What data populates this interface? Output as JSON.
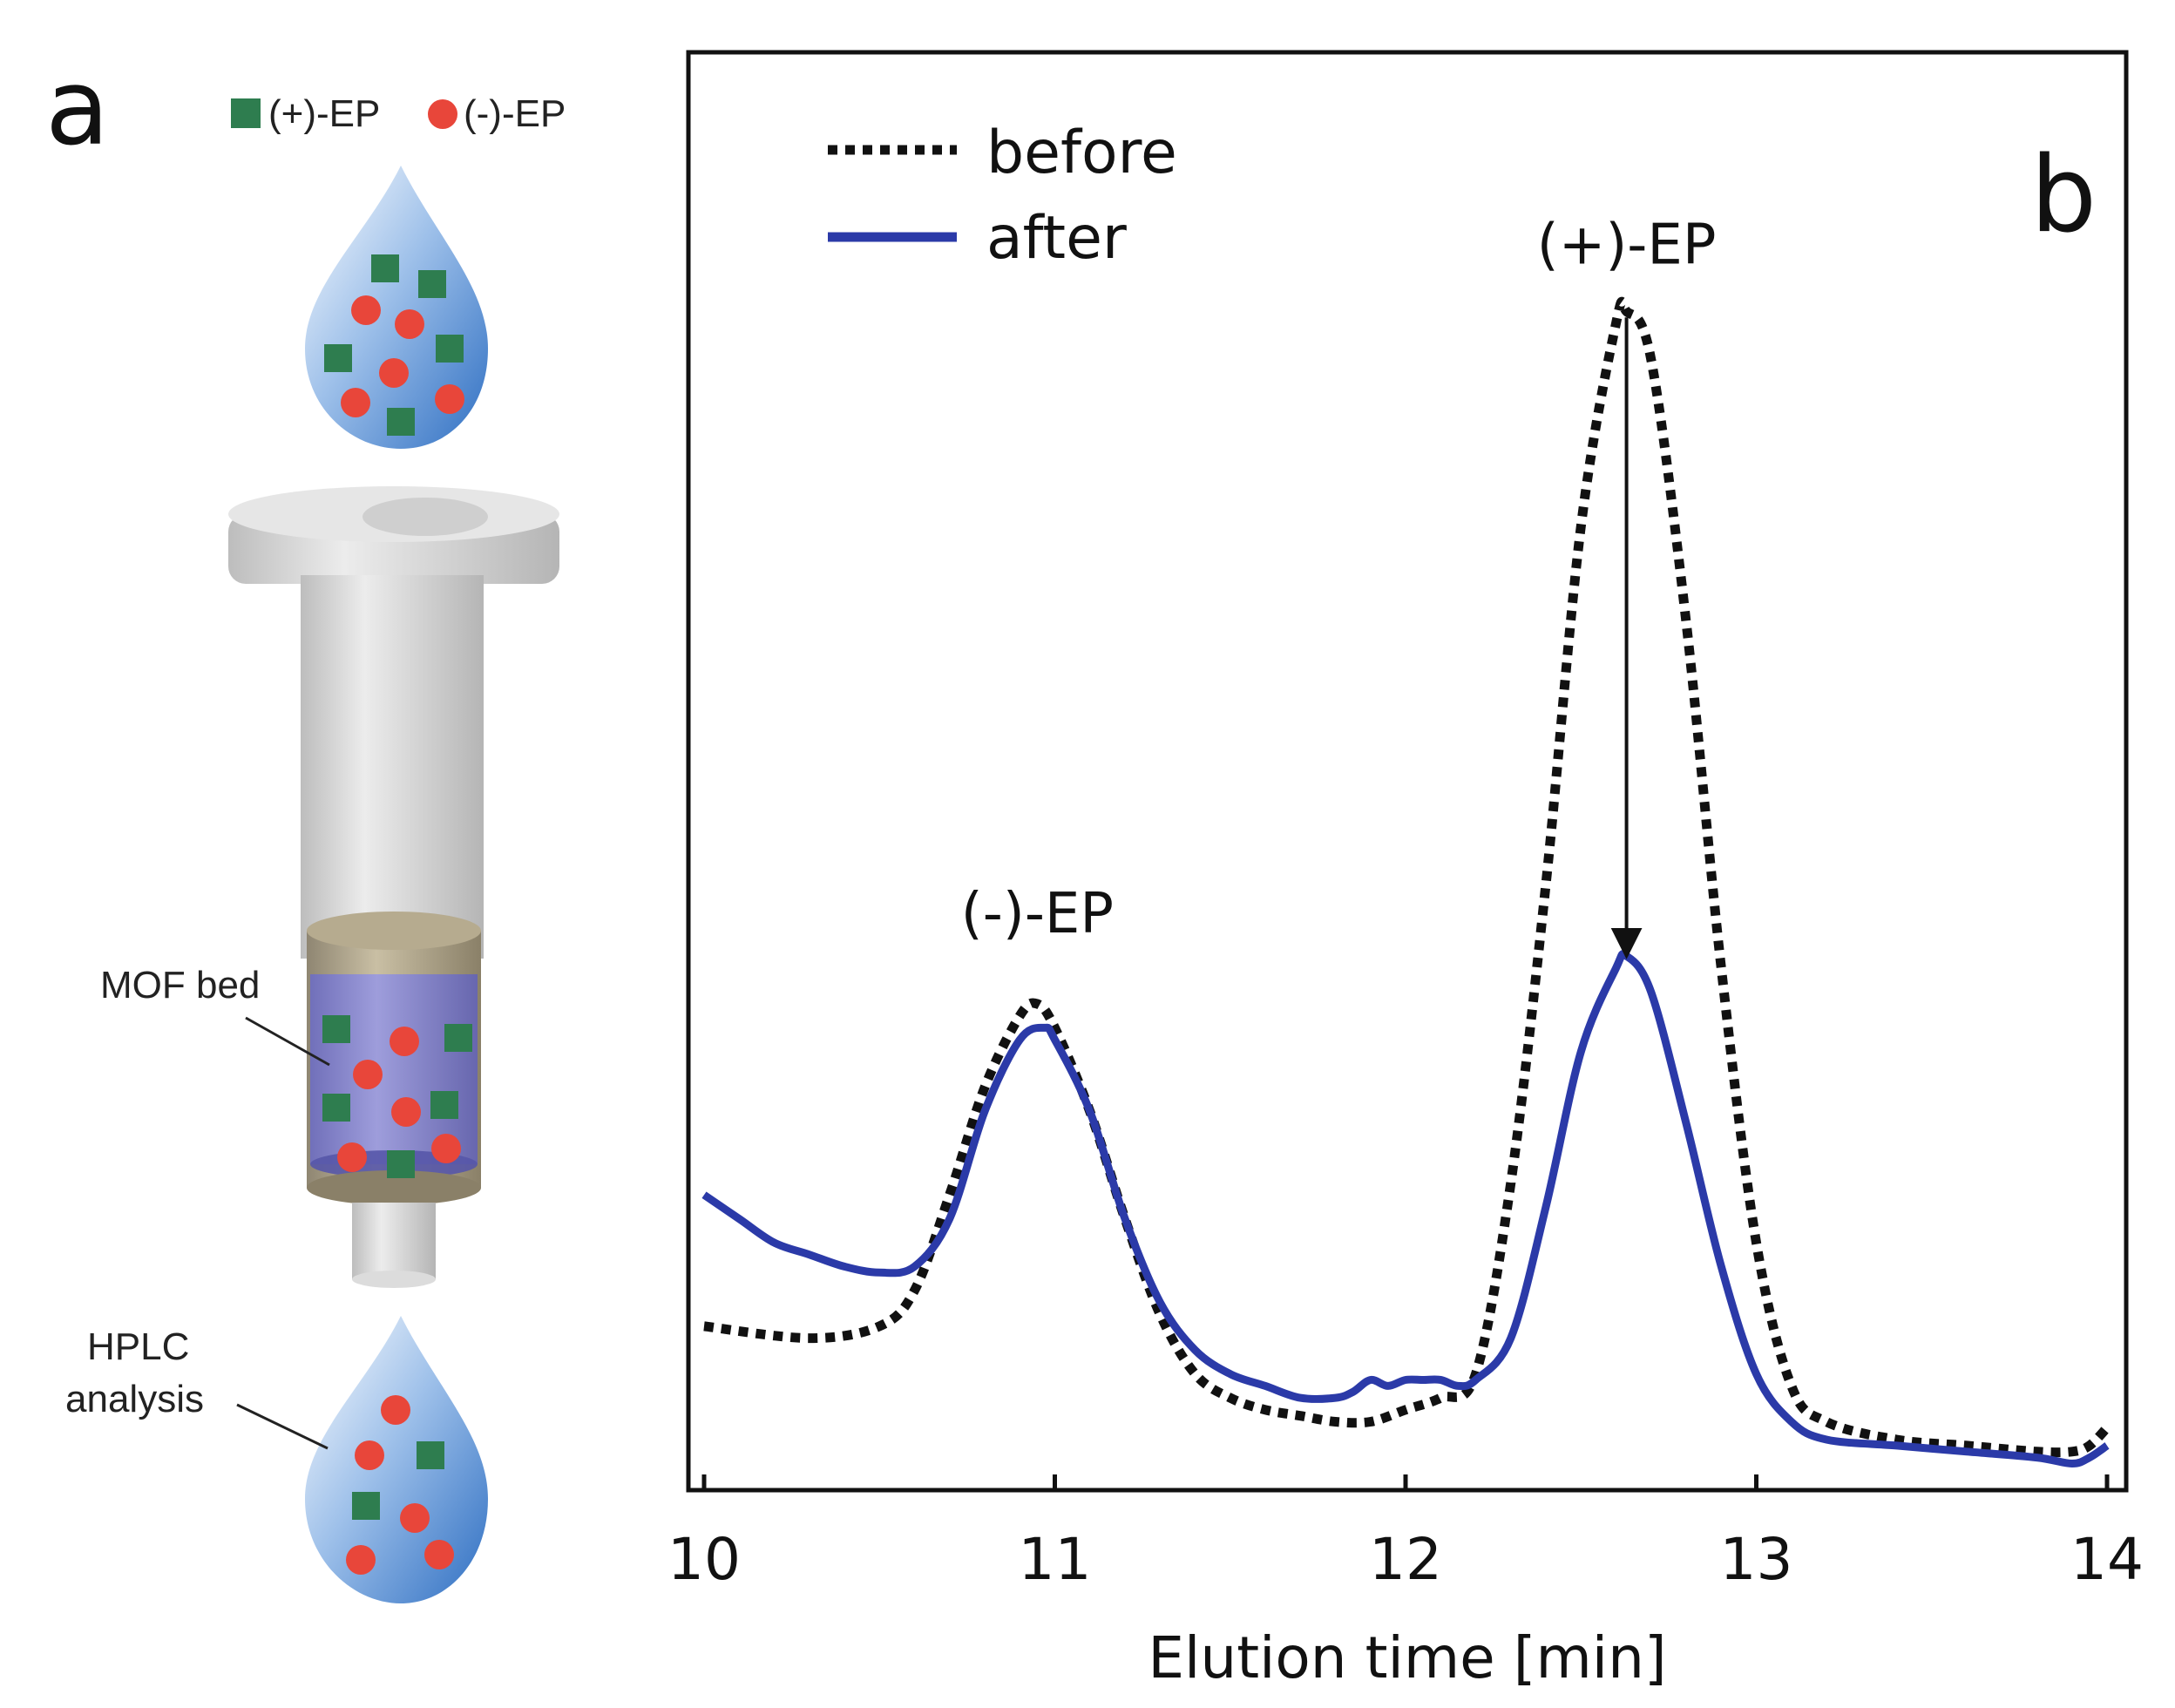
{
  "panel_a": {
    "letter": "a",
    "legend_plus": "(+)-EP",
    "legend_minus": "(-)-EP",
    "mof_label": "MOF bed",
    "hplc_line1": "HPLC",
    "hplc_line2": "analysis"
  },
  "colors": {
    "plus_ep": "#2e7d4f",
    "minus_ep": "#e8463a",
    "after_line": "#2b3aa8",
    "before_line": "#111111"
  },
  "chart_data": {
    "type": "line",
    "panel_letter": "b",
    "xlabel": "Elution time [min]",
    "ylabel": "",
    "xlim": [
      10,
      14
    ],
    "ylim": [
      0,
      1
    ],
    "xticks": [
      10,
      11,
      12,
      13,
      14
    ],
    "xtick_labels": [
      "10",
      "11",
      "12",
      "13",
      "14"
    ],
    "legend": {
      "position": "top-left",
      "entries": [
        "before",
        "after"
      ]
    },
    "annotations": {
      "minus_peak_label": "(-)-EP",
      "plus_peak_label": "(+)-EP",
      "minus_peak_x": 10.95,
      "minus_peak_label_y": 0.46,
      "plus_peak_x": 12.63,
      "plus_peak_label_y": 1.02,
      "arrow_from_y": 0.975,
      "arrow_to_y": 0.44
    },
    "series": [
      {
        "name": "before",
        "style": "dotted",
        "x": [
          10.0,
          10.3,
          10.5,
          10.6,
          10.7,
          10.8,
          10.9,
          10.95,
          11.0,
          11.1,
          11.2,
          11.3,
          11.4,
          11.5,
          11.6,
          11.7,
          11.8,
          11.9,
          12.0,
          12.1,
          12.2,
          12.3,
          12.4,
          12.5,
          12.6,
          12.63,
          12.7,
          12.8,
          12.9,
          13.0,
          13.1,
          13.2,
          13.4,
          13.6,
          13.8,
          13.9,
          13.95,
          14.0
        ],
        "y": [
          0.13,
          0.12,
          0.13,
          0.16,
          0.24,
          0.33,
          0.39,
          0.4,
          0.38,
          0.31,
          0.22,
          0.14,
          0.09,
          0.07,
          0.06,
          0.055,
          0.05,
          0.05,
          0.06,
          0.07,
          0.09,
          0.25,
          0.5,
          0.8,
          0.97,
          0.98,
          0.94,
          0.72,
          0.43,
          0.2,
          0.08,
          0.05,
          0.035,
          0.03,
          0.025,
          0.025,
          0.03,
          0.045
        ]
      },
      {
        "name": "after",
        "style": "solid",
        "x": [
          10.0,
          10.1,
          10.2,
          10.3,
          10.4,
          10.5,
          10.6,
          10.7,
          10.8,
          10.9,
          10.97,
          11.0,
          11.1,
          11.2,
          11.3,
          11.4,
          11.5,
          11.6,
          11.7,
          11.8,
          11.85,
          11.9,
          11.95,
          12.0,
          12.05,
          12.1,
          12.15,
          12.2,
          12.3,
          12.4,
          12.5,
          12.6,
          12.63,
          12.7,
          12.8,
          12.9,
          13.0,
          13.1,
          13.2,
          13.4,
          13.6,
          13.8,
          13.9,
          13.95,
          14.0
        ],
        "y": [
          0.24,
          0.22,
          0.2,
          0.19,
          0.18,
          0.175,
          0.18,
          0.22,
          0.31,
          0.37,
          0.38,
          0.37,
          0.31,
          0.22,
          0.15,
          0.11,
          0.09,
          0.08,
          0.07,
          0.07,
          0.075,
          0.085,
          0.08,
          0.085,
          0.085,
          0.085,
          0.08,
          0.085,
          0.12,
          0.23,
          0.36,
          0.43,
          0.44,
          0.41,
          0.3,
          0.18,
          0.09,
          0.05,
          0.035,
          0.03,
          0.025,
          0.02,
          0.015,
          0.02,
          0.03
        ]
      }
    ]
  }
}
